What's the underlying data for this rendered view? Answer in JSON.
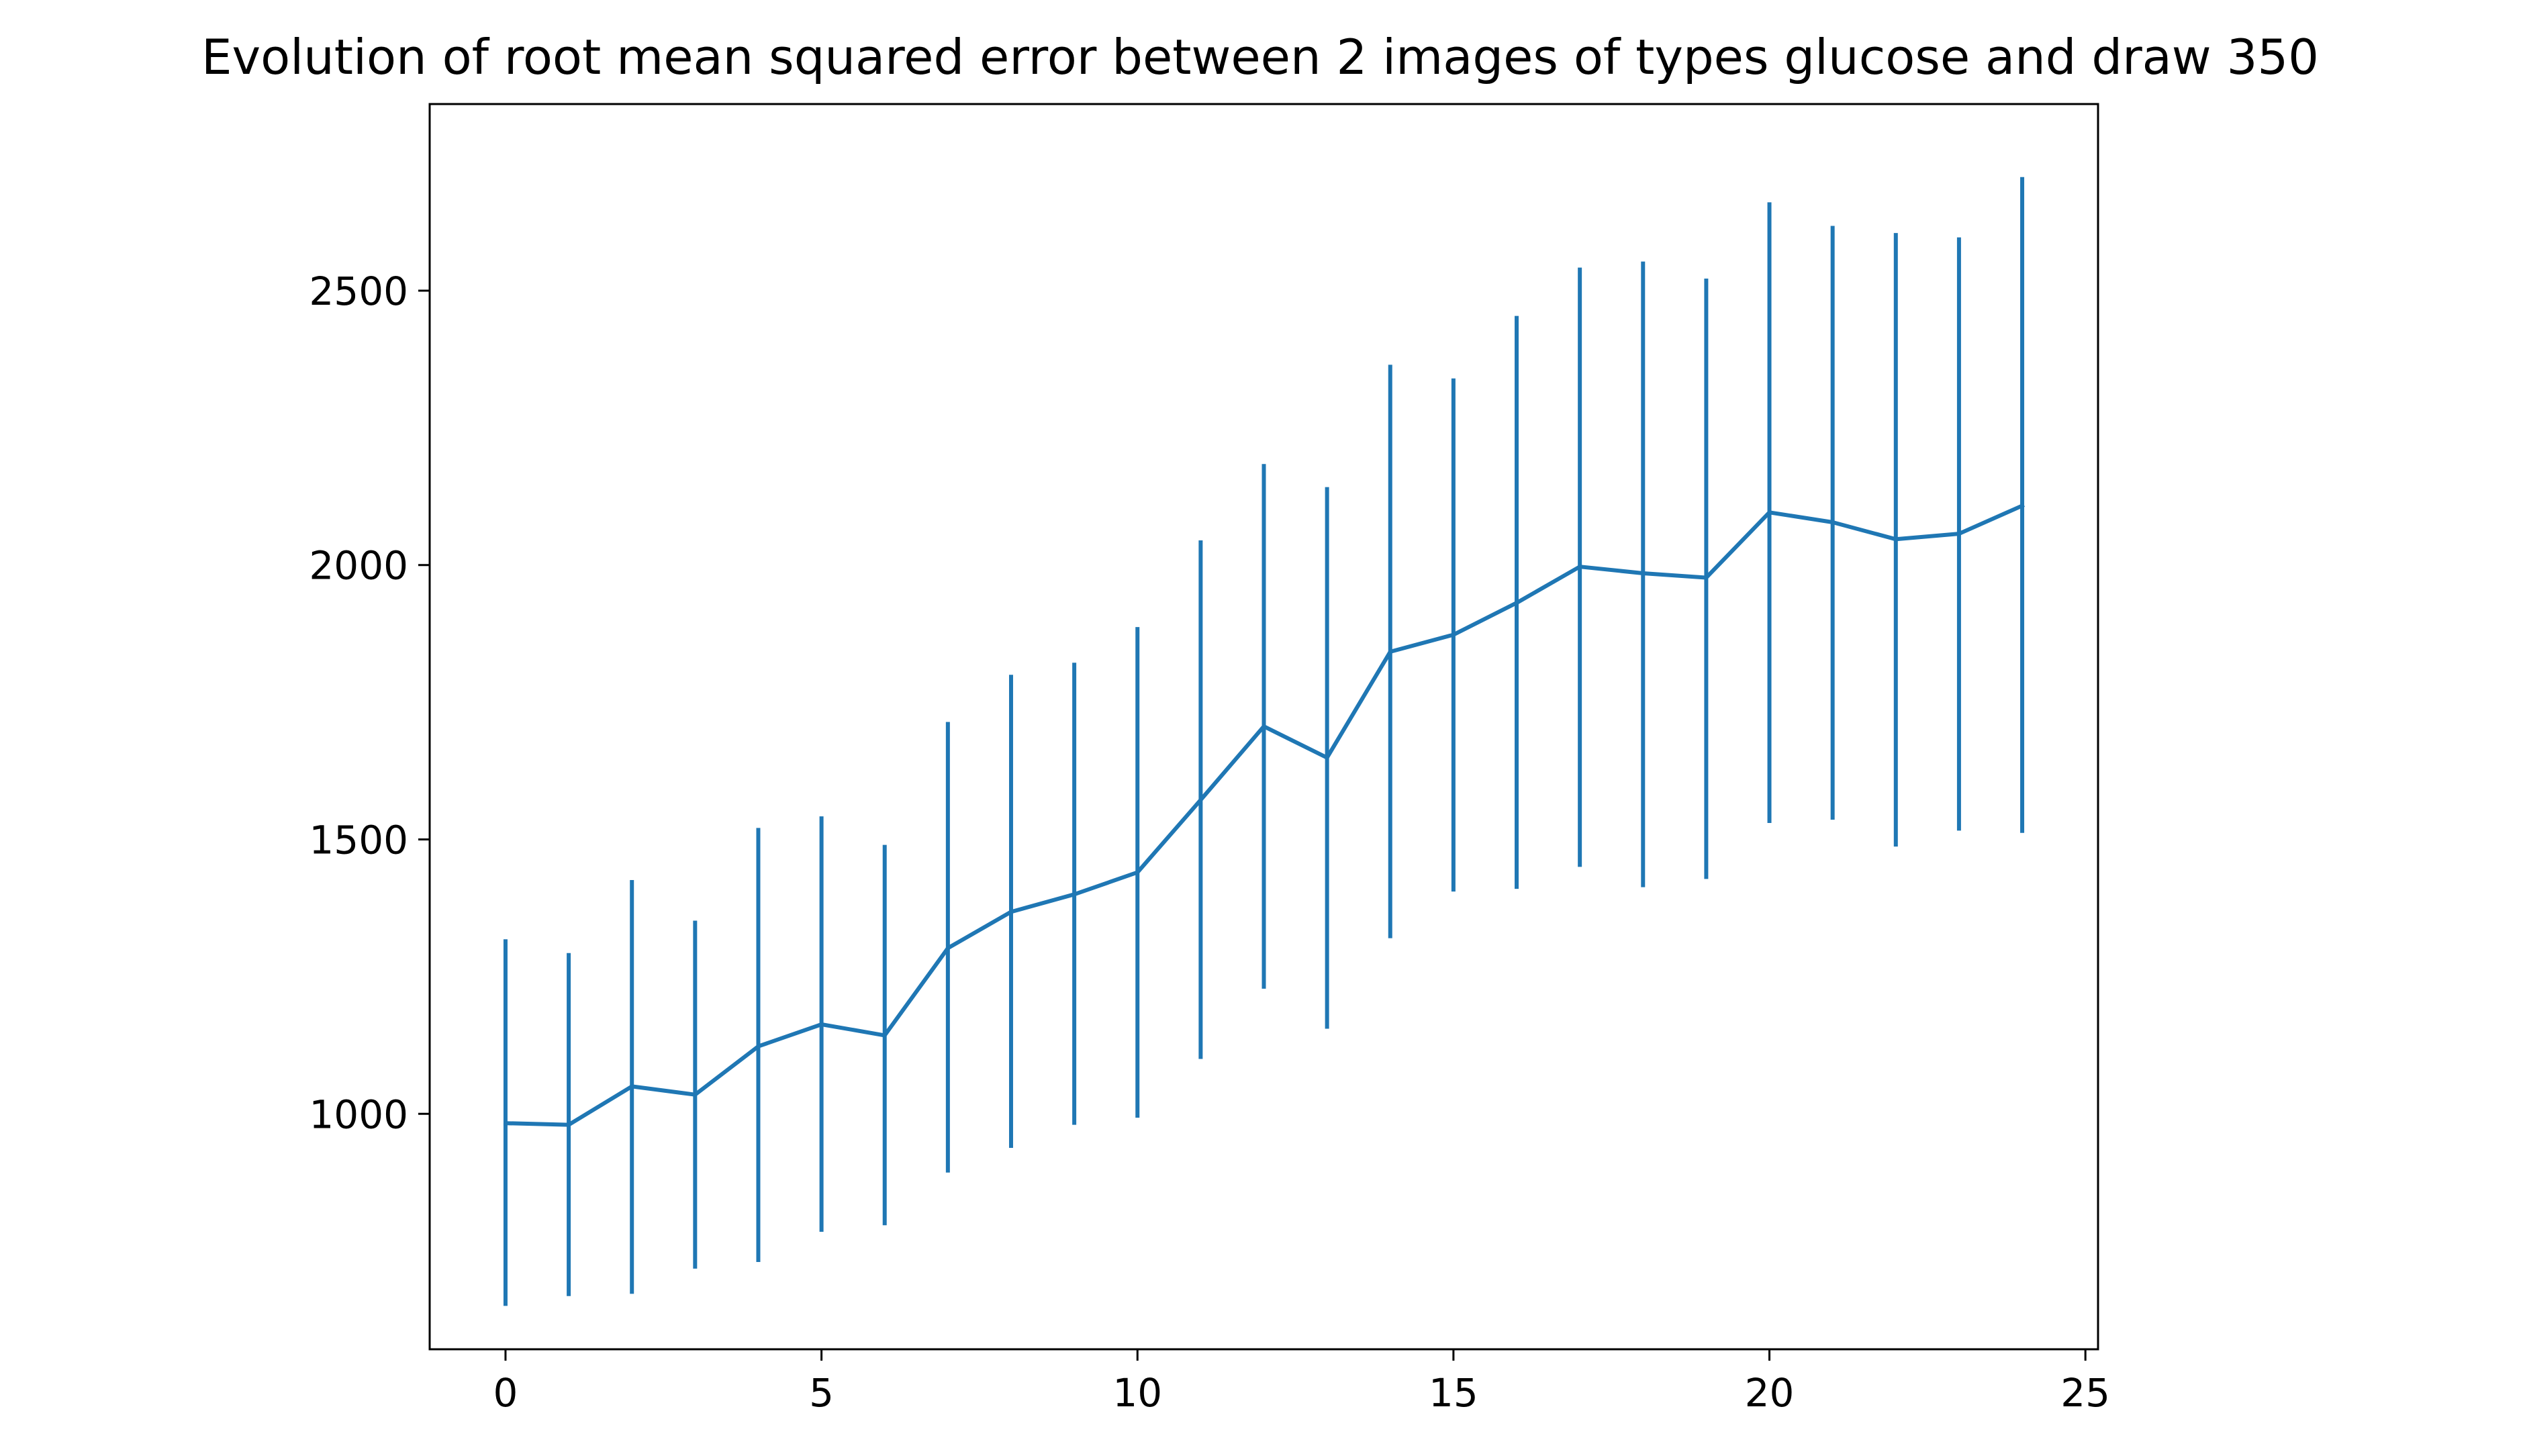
{
  "chart_data": {
    "type": "line",
    "title": "Evolution of root mean squared error between 2 images of types glucose and draw 350",
    "xlabel": "",
    "ylabel": "",
    "xlim": [
      -1.2,
      25.2
    ],
    "ylim": [
      571,
      2840
    ],
    "grid": false,
    "legend": "none",
    "x_ticks": [
      0,
      5,
      10,
      15,
      20,
      25
    ],
    "y_ticks": [
      1000,
      1500,
      2000,
      2500
    ],
    "x_tick_labels": [
      "0",
      "5",
      "10",
      "15",
      "20",
      "25"
    ],
    "y_tick_labels": [
      "1000",
      "1500",
      "2000",
      "2500"
    ],
    "colors": {
      "series": "#1f77b4",
      "axes": "#000000"
    },
    "series": [
      {
        "x": [
          0,
          1,
          2,
          3,
          4,
          5,
          6,
          7,
          8,
          9,
          10,
          11,
          12,
          13,
          14,
          15,
          16,
          17,
          18,
          19,
          20,
          21,
          22,
          23,
          24
        ],
        "y": [
          983,
          980,
          1050,
          1035,
          1123,
          1163,
          1143,
          1302,
          1368,
          1400,
          1440,
          1572,
          1706,
          1649,
          1842,
          1873,
          1931,
          1997,
          1985,
          1977,
          2096,
          2078,
          2047,
          2057,
          2108
        ],
        "err_low": [
          650,
          668,
          672,
          718,
          730,
          785,
          797,
          893,
          938,
          980,
          993,
          1100,
          1228,
          1155,
          1320,
          1405,
          1410,
          1450,
          1413,
          1428,
          1530,
          1536,
          1487,
          1516,
          1512
        ],
        "err_high": [
          1318,
          1293,
          1426,
          1352,
          1521,
          1542,
          1490,
          1714,
          1800,
          1822,
          1887,
          2045,
          2184,
          2142,
          2365,
          2340,
          2454,
          2542,
          2553,
          2522,
          2661,
          2618,
          2605,
          2597,
          2707
        ]
      }
    ]
  }
}
